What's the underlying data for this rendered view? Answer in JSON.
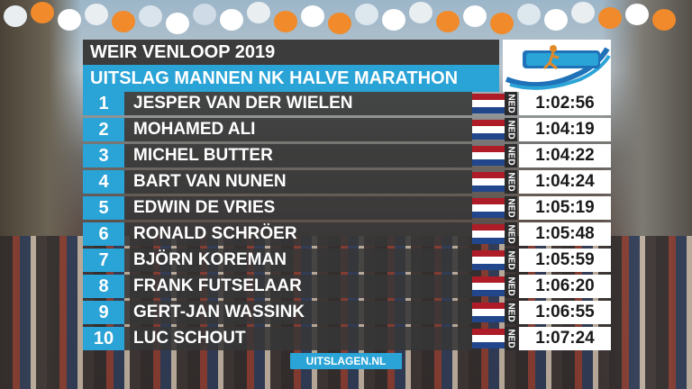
{
  "header": {
    "event_title": "WEIR VENLOOP 2019",
    "result_title": "UITSLAG MANNEN NK HALVE MARATHON"
  },
  "results": [
    {
      "rank": "1",
      "name": "JESPER VAN DER WIELEN",
      "nat": "NED",
      "time": "1:02:56"
    },
    {
      "rank": "2",
      "name": "MOHAMED ALI",
      "nat": "NED",
      "time": "1:04:19"
    },
    {
      "rank": "3",
      "name": "MICHEL BUTTER",
      "nat": "NED",
      "time": "1:04:22"
    },
    {
      "rank": "4",
      "name": "BART VAN NUNEN",
      "nat": "NED",
      "time": "1:04:24"
    },
    {
      "rank": "5",
      "name": "EDWIN DE VRIES",
      "nat": "NED",
      "time": "1:05:19"
    },
    {
      "rank": "6",
      "name": "RONALD SCHRÖER",
      "nat": "NED",
      "time": "1:05:48"
    },
    {
      "rank": "7",
      "name": "BJÖRN KOREMAN",
      "nat": "NED",
      "time": "1:05:59"
    },
    {
      "rank": "8",
      "name": "FRANK FUTSELAAR",
      "nat": "NED",
      "time": "1:06:20"
    },
    {
      "rank": "9",
      "name": "GERT-JAN WASSINK",
      "nat": "NED",
      "time": "1:06:55"
    },
    {
      "rank": "10",
      "name": "LUC SCHOUT",
      "nat": "NED",
      "time": "1:07:24"
    }
  ],
  "footer": {
    "site": "UITSLAGEN.NL"
  },
  "colors": {
    "accent_blue": "#2aa3d6",
    "header_dark": "#3c3c3c",
    "flag_red": "#ae1c28",
    "flag_blue": "#21468b"
  }
}
